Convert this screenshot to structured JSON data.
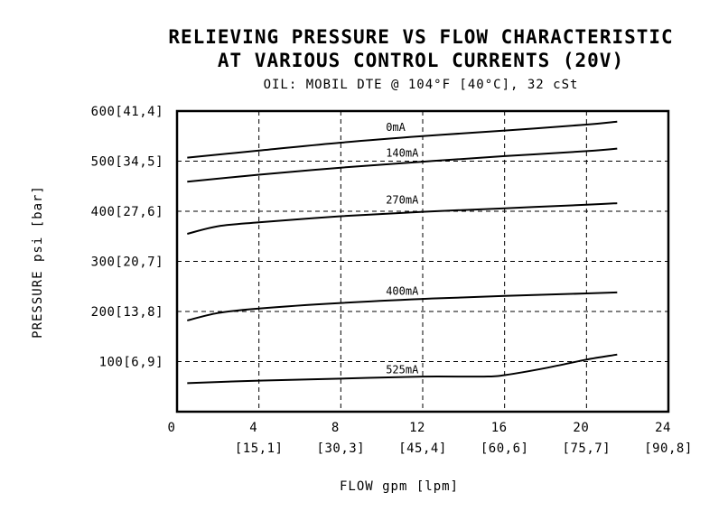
{
  "chart_data": {
    "type": "line",
    "title": "RELIEVING PRESSURE VS FLOW CHARACTERISTIC",
    "title_line2": "AT VARIOUS CONTROL CURRENTS (20V)",
    "subtitle": "OIL: MOBIL DTE @ 104°F [40°C], 32 cSt",
    "xlabel": "FLOW gpm [lpm]",
    "ylabel": "PRESSURE psi [bar]",
    "xlim": [
      0,
      24
    ],
    "ylim": [
      0,
      600
    ],
    "grid": true,
    "x_ticks": [
      {
        "value": 0,
        "label": "0",
        "sub": ""
      },
      {
        "value": 4,
        "label": "4",
        "sub": "[15,1]"
      },
      {
        "value": 8,
        "label": "8",
        "sub": "[30,3]"
      },
      {
        "value": 12,
        "label": "12",
        "sub": "[45,4]"
      },
      {
        "value": 16,
        "label": "16",
        "sub": "[60,6]"
      },
      {
        "value": 20,
        "label": "20",
        "sub": "[75,7]"
      },
      {
        "value": 24,
        "label": "24",
        "sub": "[90,8]"
      }
    ],
    "y_ticks": [
      {
        "value": 100,
        "label": "100[6,9]"
      },
      {
        "value": 200,
        "label": "200[13,8]"
      },
      {
        "value": 300,
        "label": "300[20,7]"
      },
      {
        "value": 400,
        "label": "400[27,6]"
      },
      {
        "value": 500,
        "label": "500[34,5]"
      },
      {
        "value": 600,
        "label": "600[41,4]"
      }
    ],
    "series": [
      {
        "name": "0mA",
        "label_at": {
          "x": 10.2,
          "y": 560
        },
        "x": [
          0.5,
          4,
          8,
          12,
          16,
          20,
          21.5
        ],
        "y": [
          507,
          521,
          537,
          550,
          561,
          573,
          579
        ]
      },
      {
        "name": "140mA",
        "label_at": {
          "x": 10.2,
          "y": 509
        },
        "x": [
          0.5,
          4,
          8,
          12,
          16,
          20,
          21.5
        ],
        "y": [
          459,
          473,
          487,
          499,
          510,
          520,
          525
        ]
      },
      {
        "name": "270mA",
        "label_at": {
          "x": 10.2,
          "y": 415
        },
        "x": [
          0.5,
          2,
          4,
          8,
          12,
          16,
          20,
          21.5
        ],
        "y": [
          355,
          370,
          378,
          390,
          399,
          406,
          413,
          416
        ]
      },
      {
        "name": "400mA",
        "label_at": {
          "x": 10.2,
          "y": 233
        },
        "x": [
          0.5,
          2,
          4,
          8,
          12,
          16,
          20,
          21.5
        ],
        "y": [
          182,
          197,
          206,
          217,
          225,
          231,
          236,
          238
        ]
      },
      {
        "name": "525mA",
        "label_at": {
          "x": 10.2,
          "y": 77
        },
        "x": [
          0.5,
          4,
          8,
          12,
          15,
          16,
          18,
          20,
          21.5
        ],
        "y": [
          57,
          62,
          66,
          70,
          70,
          73,
          87,
          104,
          114
        ]
      }
    ]
  }
}
